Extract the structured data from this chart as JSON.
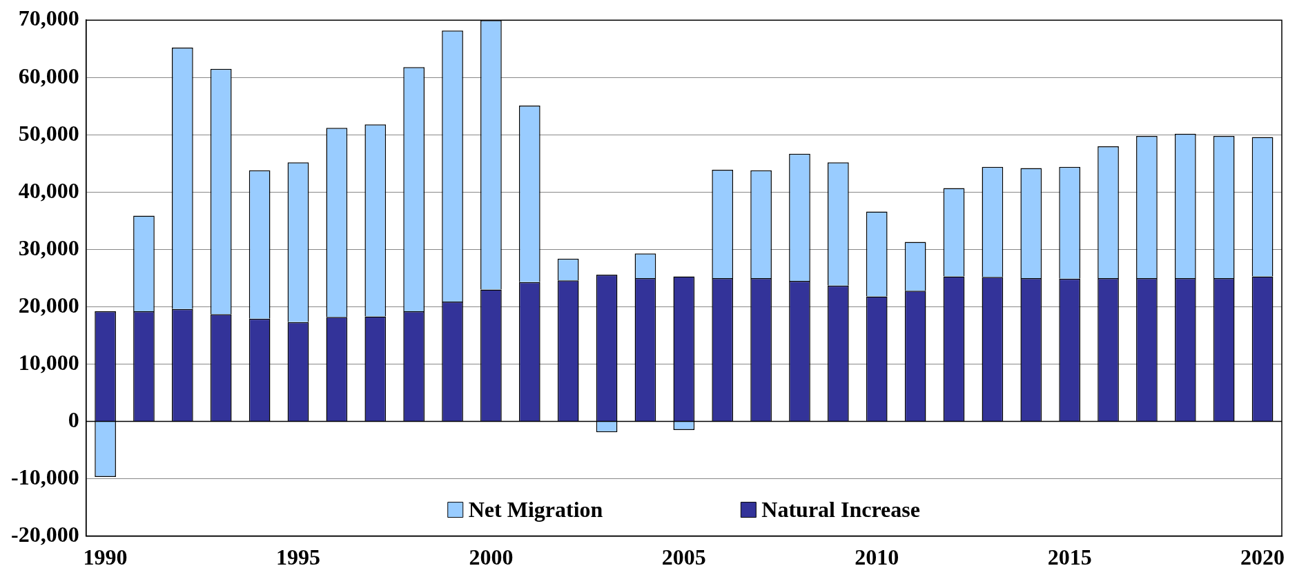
{
  "chart_data": {
    "type": "bar",
    "stacked": true,
    "categories": [
      "1990",
      null,
      null,
      null,
      null,
      "1995",
      null,
      null,
      null,
      null,
      "2000",
      null,
      null,
      null,
      null,
      "2005",
      null,
      null,
      null,
      null,
      "2010",
      null,
      null,
      null,
      null,
      "2015",
      null,
      null,
      null,
      null,
      "2020"
    ],
    "series": [
      {
        "name": "Natural Increase",
        "color": "#333399",
        "values": [
          19200,
          19200,
          19600,
          18700,
          17900,
          17300,
          18200,
          18300,
          19200,
          20900,
          23000,
          24300,
          24600,
          25600,
          25000,
          25300,
          25000,
          25000,
          24500,
          23700,
          21800,
          22800,
          25300,
          25200,
          25000,
          24900,
          25000,
          25000,
          25000,
          25000,
          25300
        ]
      },
      {
        "name": "Net Migration",
        "color": "#99ccff",
        "values": [
          -9700,
          16700,
          45600,
          42800,
          25900,
          27900,
          33000,
          33500,
          42600,
          47300,
          47000,
          30800,
          3800,
          -1900,
          4300,
          -1500,
          18900,
          18800,
          22200,
          21500,
          14800,
          8500,
          15400,
          19200,
          19200,
          19500,
          23000,
          24800,
          25200,
          24800,
          24300
        ]
      }
    ],
    "ylim": [
      -20000,
      70000
    ],
    "yticks": [
      {
        "value": -20000,
        "label": "-20,000"
      },
      {
        "value": -10000,
        "label": "-10,000"
      },
      0,
      {
        "value": 10000,
        "label": "10,000"
      },
      {
        "value": 20000,
        "label": "20,000"
      },
      {
        "value": 30000,
        "label": "30,000"
      },
      {
        "value": 40000,
        "label": "40,000"
      },
      {
        "value": 50000,
        "label": "50,000"
      },
      {
        "value": 60000,
        "label": "60,000"
      },
      {
        "value": 70000,
        "label": "70,000"
      }
    ],
    "grid": "y",
    "legend": "bottom"
  }
}
